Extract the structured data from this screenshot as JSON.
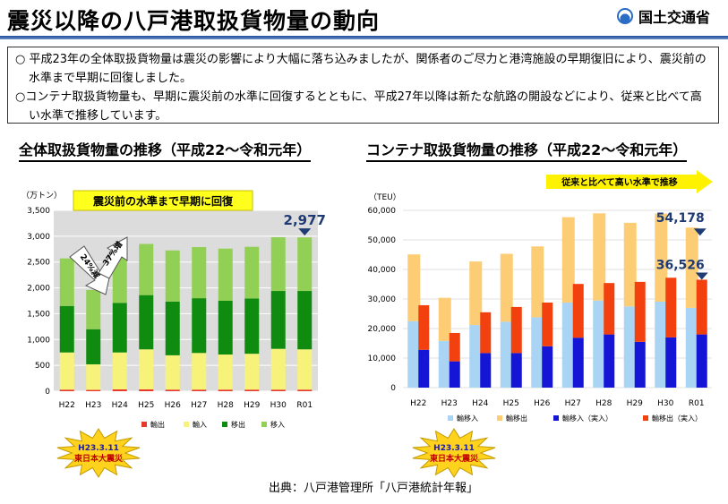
{
  "header": {
    "title": "震災以降の八戸港取扱貨物量の動向",
    "logo_text": "国土交通省"
  },
  "summary": {
    "lines": [
      "○ 平成23年の全体取扱貨物量は震災の影響により大幅に落ち込みましたが、関係者のご尽力と港湾施設の早期復旧により、震災前の水準まで早期に回復しました。",
      "○コンテナ取扱貨物量も、早期に震災前の水準に回復するとともに、平成27年以降は新たな航路の開設などにより、従来と比べて高い水準で推移しています。"
    ]
  },
  "colors": {
    "export": "#e8382a",
    "import": "#f6f27a",
    "transfer_out": "#0f8c10",
    "transfer_in": "#92cf55",
    "teu_import_total": "#a9d4f4",
    "teu_export_total": "#fdcd75",
    "teu_import_actual": "#1515d6",
    "teu_export_actual": "#f2400f",
    "chart_bg": "#dcdcdc",
    "callout_bg": "#ffff1e",
    "arrow_fill": "#fff200",
    "marker": "#1f3b73"
  },
  "chart_data": [
    {
      "type": "bar",
      "stacked": true,
      "title": "全体取扱貨物量の推移（平成22～令和元年）",
      "unit_label": "（万トン）",
      "categories": [
        "H22",
        "H23",
        "H24",
        "H25",
        "H26",
        "H27",
        "H28",
        "H29",
        "H30",
        "R01"
      ],
      "ylim": [
        0,
        3500
      ],
      "yticks": [
        "0",
        "500",
        "1,000",
        "1,500",
        "2,000",
        "2,500",
        "3,000",
        "3,500"
      ],
      "grid": true,
      "legend_position": "bottom",
      "series": [
        {
          "name": "輸出",
          "values": [
            30,
            25,
            35,
            35,
            30,
            30,
            30,
            30,
            30,
            30
          ]
        },
        {
          "name": "輸入",
          "values": [
            720,
            495,
            715,
            775,
            665,
            710,
            680,
            695,
            790,
            780
          ]
        },
        {
          "name": "移出",
          "values": [
            900,
            680,
            960,
            1050,
            1040,
            1060,
            1040,
            1070,
            1120,
            1130
          ]
        },
        {
          "name": "移入",
          "values": [
            920,
            760,
            990,
            990,
            990,
            990,
            1010,
            1000,
            1040,
            1037
          ]
        }
      ],
      "annotations": {
        "callout": "震災前の水準まで早期に回復",
        "decrease": "24%減",
        "increase": "37%増",
        "total_label": "2,977"
      }
    },
    {
      "type": "bar",
      "grouped": true,
      "title": "コンテナ取扱貨物量の推移（平成22～令和元年）",
      "unit_label": "（TEU）",
      "categories": [
        "H22",
        "H23",
        "H24",
        "H25",
        "H26",
        "H27",
        "H28",
        "H29",
        "H30",
        "R01"
      ],
      "ylim": [
        0,
        60000
      ],
      "yticks": [
        "0",
        "10,000",
        "20,000",
        "30,000",
        "40,000",
        "50,000",
        "60,000"
      ],
      "grid": true,
      "legend_position": "bottom",
      "series": [
        {
          "name": "輸移入",
          "values": [
            22500,
            15800,
            21200,
            22300,
            23800,
            28800,
            29500,
            27500,
            29100,
            27000
          ]
        },
        {
          "name": "輸移出",
          "values": [
            22600,
            14600,
            21500,
            23000,
            24000,
            28900,
            29500,
            28300,
            29800,
            27178
          ]
        },
        {
          "name": "輸移入（実入）",
          "values": [
            12800,
            8900,
            11700,
            11700,
            14000,
            16900,
            18000,
            15500,
            17000,
            18000
          ]
        },
        {
          "name": "輸移出（実入）",
          "values": [
            15100,
            9600,
            13800,
            15600,
            14800,
            18200,
            17400,
            20300,
            20200,
            18526
          ]
        }
      ],
      "annotations": {
        "arrow_text": "従来と比べて高い水準で推移",
        "total_label_all": "54,178",
        "total_label_actual": "36,526"
      }
    }
  ],
  "badge": {
    "date": "H23.3.11",
    "name": "東日本大震災"
  },
  "source": "出典：八戸港管理所「八戸港統計年報」"
}
